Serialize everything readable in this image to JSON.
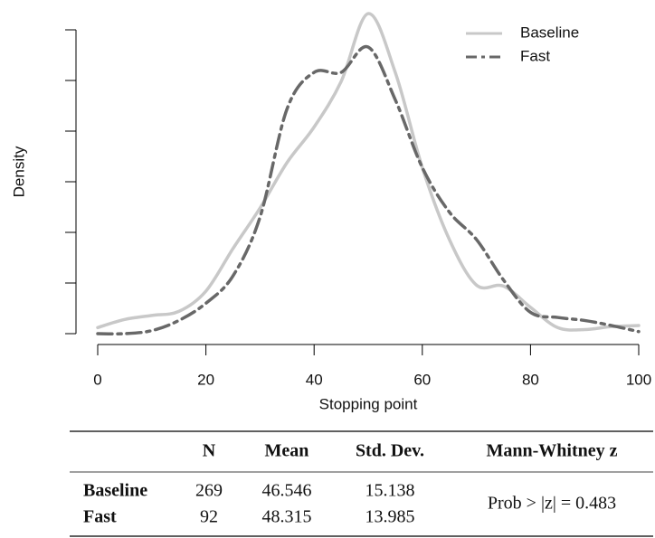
{
  "chart_data": {
    "type": "line",
    "x_label": "Stopping point",
    "y_label": "Density",
    "x": [
      0,
      5,
      10,
      15,
      20,
      25,
      30,
      35,
      40,
      45,
      50,
      55,
      60,
      65,
      70,
      75,
      80,
      85,
      90,
      95,
      100
    ],
    "series": [
      {
        "name": "Baseline",
        "color": "#c8c8c8",
        "dash": "solid",
        "values": [
          0.0006,
          0.0014,
          0.0018,
          0.0022,
          0.0042,
          0.0084,
          0.0124,
          0.0169,
          0.0204,
          0.0249,
          0.0316,
          0.0258,
          0.0164,
          0.0093,
          0.0048,
          0.0047,
          0.0026,
          0.0006,
          0.0004,
          0.0007,
          0.0008
        ]
      },
      {
        "name": "Fast",
        "color": "#686868",
        "dash": "dashed",
        "values": [
          0.0,
          0.0,
          0.0003,
          0.0013,
          0.003,
          0.0057,
          0.0115,
          0.0222,
          0.0258,
          0.0258,
          0.0283,
          0.0231,
          0.0164,
          0.012,
          0.0093,
          0.0053,
          0.0021,
          0.0016,
          0.0013,
          0.0008,
          0.0002
        ]
      }
    ],
    "xlim": [
      0,
      100
    ],
    "xticks": [
      0,
      20,
      40,
      60,
      80,
      100
    ],
    "ylim": [
      0,
      0.0325
    ],
    "yticks": [
      0,
      0.005,
      0.01,
      0.015,
      0.02,
      0.025,
      0.03
    ],
    "legend": "top-right"
  },
  "table": {
    "columns": [
      "N",
      "Mean",
      "Std. Dev.",
      "Mann-Whitney z"
    ],
    "rows": [
      [
        "Baseline",
        269,
        46.546,
        15.138
      ],
      [
        "Fast",
        92,
        48.315,
        13.985
      ]
    ],
    "test": "Prob > |z| = 0.483"
  }
}
